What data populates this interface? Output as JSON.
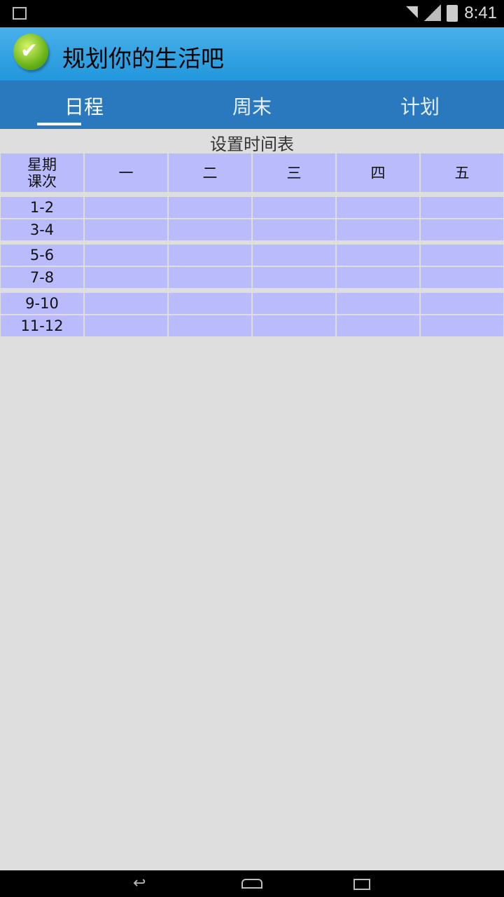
{
  "status_bar": {
    "time": "8:41",
    "icons": [
      "image-icon",
      "wifi-icon",
      "signal-icon",
      "battery-icon"
    ]
  },
  "app_bar": {
    "title": "规划你的生活吧",
    "logo": "green-check-icon"
  },
  "tabs": [
    {
      "label": "日程",
      "active": true
    },
    {
      "label": "周末",
      "active": false
    },
    {
      "label": "计划",
      "active": false
    }
  ],
  "timetable": {
    "caption": "设置时间表",
    "corner": [
      "星期",
      "课次"
    ],
    "days": [
      "一",
      "二",
      "三",
      "四",
      "五"
    ],
    "periods": [
      "1-2",
      "3-4",
      "5-6",
      "7-8",
      "9-10",
      "11-12"
    ],
    "cell_color": "#babbfd"
  },
  "nav_bar": {
    "icons": [
      "back-icon",
      "home-icon",
      "recents-icon"
    ]
  }
}
